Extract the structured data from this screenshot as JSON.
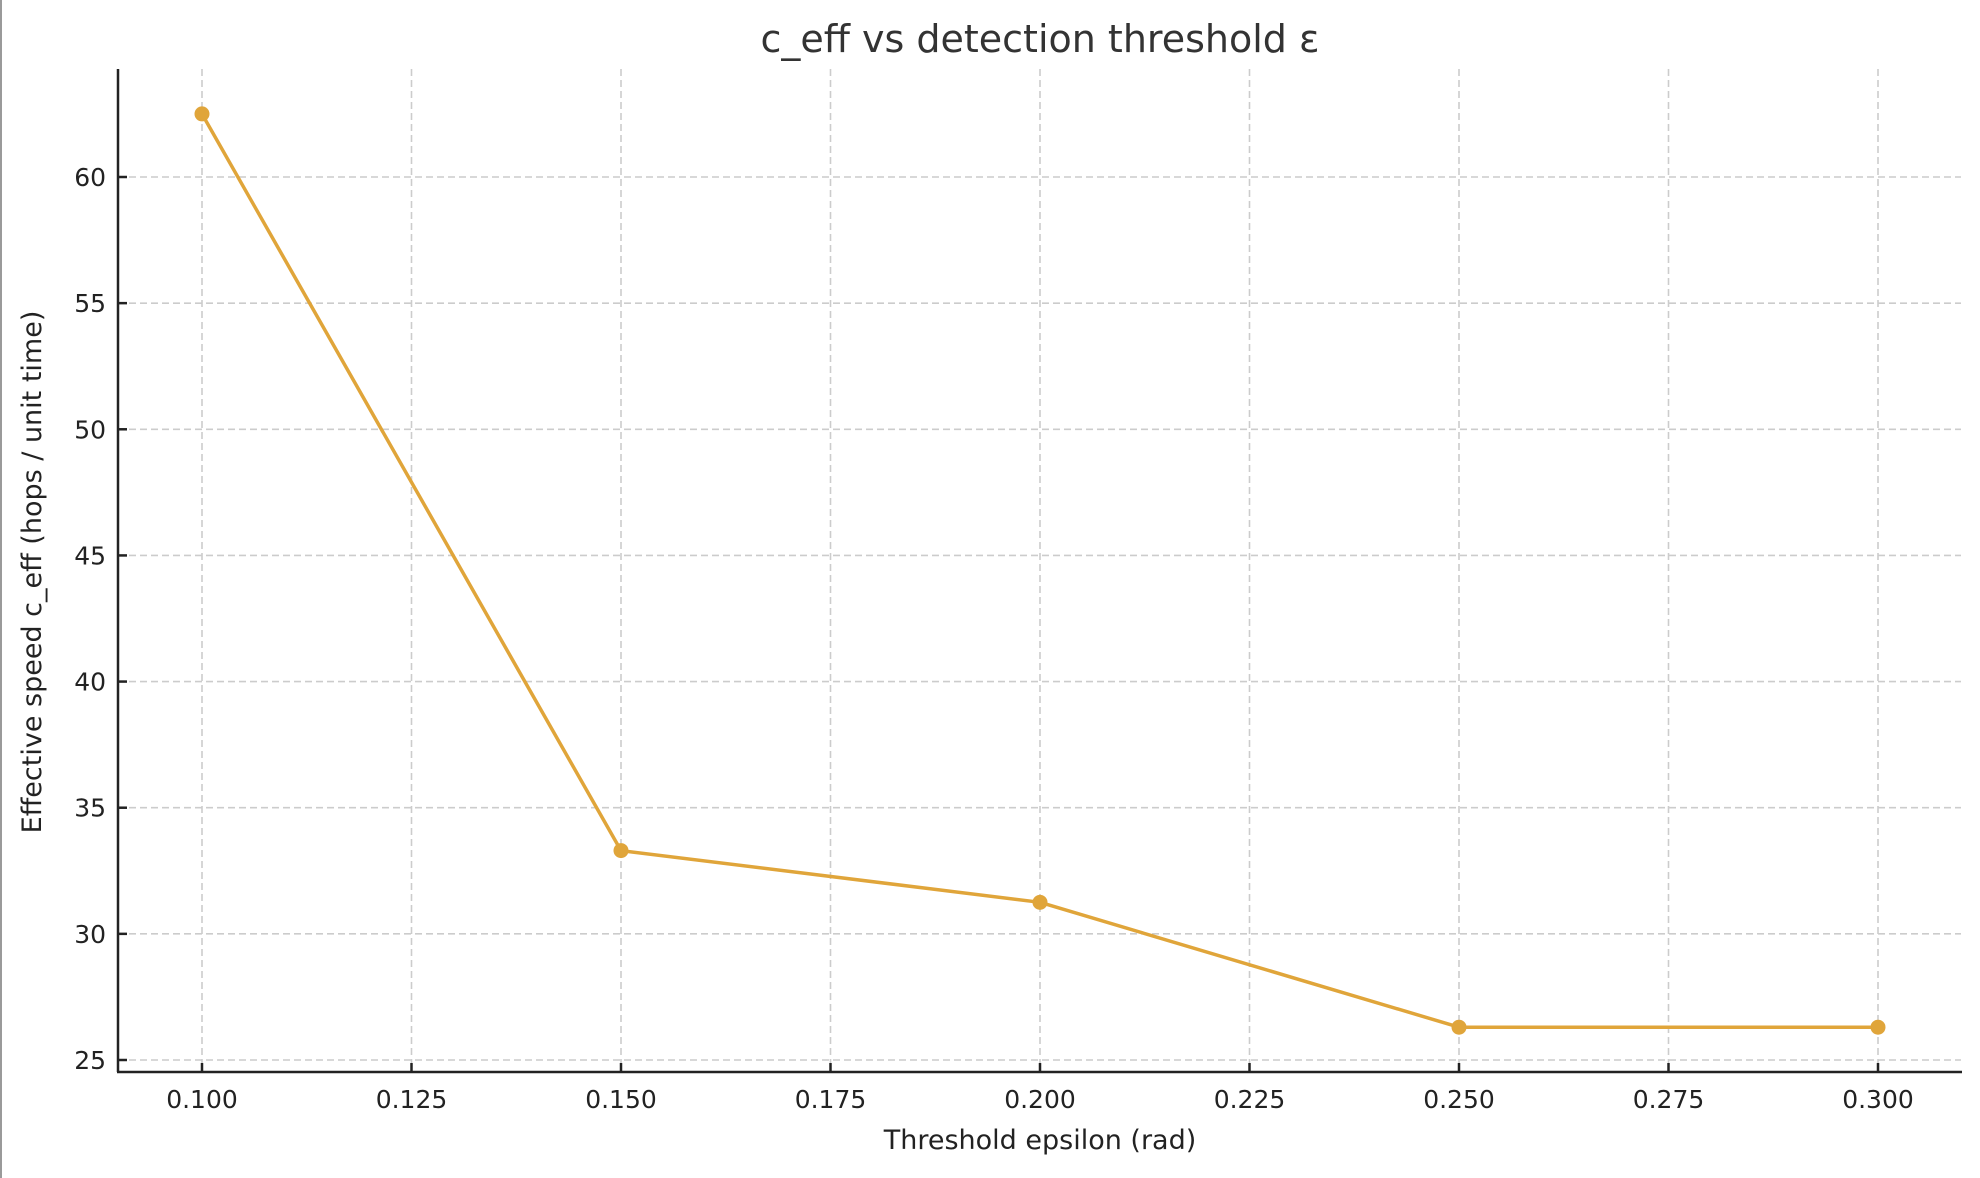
{
  "chart_data": {
    "type": "line",
    "title": "c_eff vs detection threshold ε",
    "xlabel": "Threshold epsilon (rad)",
    "ylabel": "Effective speed c_eff (hops / unit time)",
    "x": [
      0.1,
      0.15,
      0.2,
      0.25,
      0.3
    ],
    "series": [
      {
        "name": "c_eff",
        "color": "#e0a53a",
        "marker": "circle",
        "values": [
          62.5,
          33.3,
          31.25,
          26.3,
          26.3
        ]
      }
    ],
    "xlim": [
      0.09,
      0.3095
    ],
    "ylim": [
      24.5,
      64.3
    ],
    "xticks": [
      "0.100",
      "0.125",
      "0.150",
      "0.175",
      "0.200",
      "0.225",
      "0.250",
      "0.275",
      "0.300"
    ],
    "xtick_values": [
      0.1,
      0.125,
      0.15,
      0.175,
      0.2,
      0.225,
      0.25,
      0.275,
      0.3
    ],
    "yticks": [
      "25",
      "30",
      "35",
      "40",
      "45",
      "50",
      "55",
      "60"
    ],
    "ytick_values": [
      25,
      30,
      35,
      40,
      45,
      50,
      55,
      60
    ],
    "grid": true,
    "grid_style": "dashed",
    "legend": null
  },
  "colors": {
    "line": "#e0a53a",
    "axis": "#222222",
    "grid": "#cccccc",
    "title": "#333333"
  }
}
